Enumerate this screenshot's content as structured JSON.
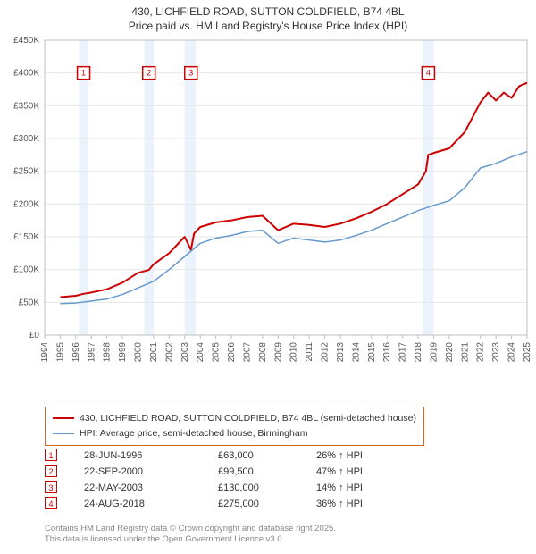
{
  "title_line1": "430, LICHFIELD ROAD, SUTTON COLDFIELD, B74 4BL",
  "title_line2": "Price paid vs. HM Land Registry's House Price Index (HPI)",
  "chart": {
    "type": "line",
    "background_color": "#ffffff",
    "grid_color": "#e6e6e6",
    "band_color": "#eaf3fb",
    "plot_border_color": "#bfbfbf",
    "axis_text_color": "#555555",
    "axis_fontsize": 10,
    "x": {
      "min": 1994,
      "max": 2025,
      "tick_step": 1,
      "ticks": [
        "1994",
        "1995",
        "1996",
        "1997",
        "1998",
        "1999",
        "2000",
        "2001",
        "2002",
        "2003",
        "2004",
        "2005",
        "2006",
        "2007",
        "2008",
        "2009",
        "2010",
        "2011",
        "2012",
        "2013",
        "2014",
        "2015",
        "2016",
        "2017",
        "2018",
        "2019",
        "2020",
        "2021",
        "2022",
        "2023",
        "2024",
        "2025"
      ]
    },
    "y": {
      "min": 0,
      "max": 450000,
      "tick_step": 50000,
      "ticks": [
        "£0",
        "£50K",
        "£100K",
        "£150K",
        "£200K",
        "£250K",
        "£300K",
        "£350K",
        "£400K",
        "£450K"
      ]
    },
    "series": [
      {
        "name": "430, LICHFIELD ROAD, SUTTON COLDFIELD, B74 4BL (semi-detached house)",
        "color": "#cc0000",
        "line_width": 2,
        "data": [
          [
            1995.0,
            58000
          ],
          [
            1996.0,
            60000
          ],
          [
            1996.5,
            63000
          ],
          [
            1997.0,
            65000
          ],
          [
            1998.0,
            70000
          ],
          [
            1999.0,
            80000
          ],
          [
            2000.0,
            95000
          ],
          [
            2000.7,
            99500
          ],
          [
            2001.0,
            108000
          ],
          [
            2002.0,
            125000
          ],
          [
            2003.0,
            150000
          ],
          [
            2003.4,
            130000
          ],
          [
            2003.6,
            155000
          ],
          [
            2004.0,
            165000
          ],
          [
            2005.0,
            172000
          ],
          [
            2006.0,
            175000
          ],
          [
            2007.0,
            180000
          ],
          [
            2008.0,
            182000
          ],
          [
            2009.0,
            160000
          ],
          [
            2010.0,
            170000
          ],
          [
            2011.0,
            168000
          ],
          [
            2012.0,
            165000
          ],
          [
            2013.0,
            170000
          ],
          [
            2014.0,
            178000
          ],
          [
            2015.0,
            188000
          ],
          [
            2016.0,
            200000
          ],
          [
            2017.0,
            215000
          ],
          [
            2018.0,
            230000
          ],
          [
            2018.5,
            250000
          ],
          [
            2018.65,
            275000
          ],
          [
            2019.0,
            278000
          ],
          [
            2020.0,
            285000
          ],
          [
            2021.0,
            310000
          ],
          [
            2022.0,
            355000
          ],
          [
            2022.5,
            370000
          ],
          [
            2023.0,
            358000
          ],
          [
            2023.5,
            370000
          ],
          [
            2024.0,
            362000
          ],
          [
            2024.5,
            380000
          ],
          [
            2025.0,
            385000
          ]
        ]
      },
      {
        "name": "HPI: Average price, semi-detached house, Birmingham",
        "color": "#6699cc",
        "line_width": 1.5,
        "data": [
          [
            1995.0,
            48000
          ],
          [
            1996.0,
            49000
          ],
          [
            1997.0,
            52000
          ],
          [
            1998.0,
            55000
          ],
          [
            1999.0,
            62000
          ],
          [
            2000.0,
            72000
          ],
          [
            2001.0,
            82000
          ],
          [
            2002.0,
            100000
          ],
          [
            2003.0,
            120000
          ],
          [
            2004.0,
            140000
          ],
          [
            2005.0,
            148000
          ],
          [
            2006.0,
            152000
          ],
          [
            2007.0,
            158000
          ],
          [
            2008.0,
            160000
          ],
          [
            2009.0,
            140000
          ],
          [
            2010.0,
            148000
          ],
          [
            2011.0,
            145000
          ],
          [
            2012.0,
            142000
          ],
          [
            2013.0,
            145000
          ],
          [
            2014.0,
            152000
          ],
          [
            2015.0,
            160000
          ],
          [
            2016.0,
            170000
          ],
          [
            2017.0,
            180000
          ],
          [
            2018.0,
            190000
          ],
          [
            2019.0,
            198000
          ],
          [
            2020.0,
            205000
          ],
          [
            2021.0,
            225000
          ],
          [
            2022.0,
            255000
          ],
          [
            2023.0,
            262000
          ],
          [
            2024.0,
            272000
          ],
          [
            2025.0,
            280000
          ]
        ]
      }
    ],
    "bands": [
      {
        "from": 1996.2,
        "to": 1996.8
      },
      {
        "from": 2000.4,
        "to": 2001.0
      },
      {
        "from": 2003.0,
        "to": 2003.7
      },
      {
        "from": 2018.3,
        "to": 2019.0
      }
    ],
    "markers": [
      {
        "label": "1",
        "x": 1996.5,
        "y": 400000
      },
      {
        "label": "2",
        "x": 2000.7,
        "y": 400000
      },
      {
        "label": "3",
        "x": 2003.4,
        "y": 400000
      },
      {
        "label": "4",
        "x": 2018.65,
        "y": 400000
      }
    ],
    "marker_box_color": "#cc0000",
    "marker_text_color": "#cc0000"
  },
  "legend": {
    "border_color": "#d2691e",
    "items": [
      {
        "color": "#cc0000",
        "width": 2,
        "label": "430, LICHFIELD ROAD, SUTTON COLDFIELD, B74 4BL (semi-detached house)"
      },
      {
        "color": "#6699cc",
        "width": 1.5,
        "label": "HPI: Average price, semi-detached house, Birmingham"
      }
    ]
  },
  "sales": [
    {
      "n": "1",
      "date": "28-JUN-1996",
      "price": "£63,000",
      "diff": "26% ↑ HPI"
    },
    {
      "n": "2",
      "date": "22-SEP-2000",
      "price": "£99,500",
      "diff": "47% ↑ HPI"
    },
    {
      "n": "3",
      "date": "22-MAY-2003",
      "price": "£130,000",
      "diff": "14% ↑ HPI"
    },
    {
      "n": "4",
      "date": "24-AUG-2018",
      "price": "£275,000",
      "diff": "36% ↑ HPI"
    }
  ],
  "licence_line1": "Contains HM Land Registry data © Crown copyright and database right 2025.",
  "licence_line2": "This data is licensed under the Open Government Licence v3.0."
}
